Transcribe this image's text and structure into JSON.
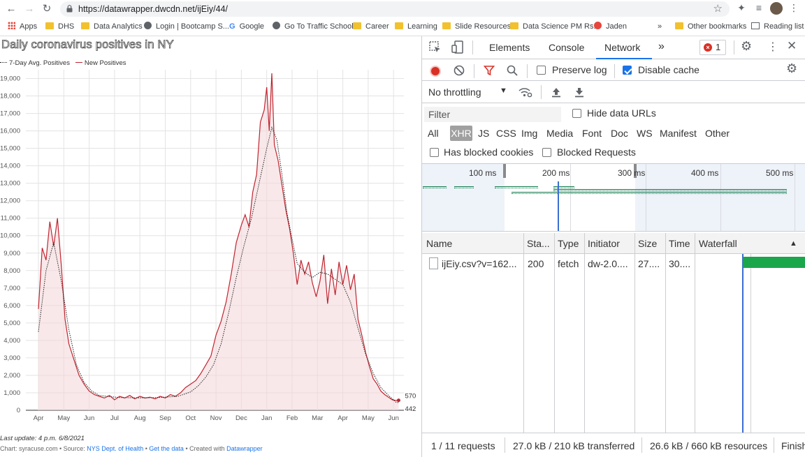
{
  "browser": {
    "url": "https://datawrapper.dwcdn.net/ijEiy/44/",
    "bookmarks": [
      {
        "label": "Apps",
        "icon": "apps-grid-icon"
      },
      {
        "label": "DHS",
        "icon": "folder-icon"
      },
      {
        "label": "Data Analytics",
        "icon": "folder-icon"
      },
      {
        "label": "Login | Bootcamp S...",
        "icon": "globe-icon"
      },
      {
        "label": "Google",
        "icon": "google-icon"
      },
      {
        "label": "Go To Traffic School",
        "icon": "globe-icon"
      },
      {
        "label": "Career",
        "icon": "folder-icon"
      },
      {
        "label": "Learning",
        "icon": "folder-icon"
      },
      {
        "label": "Slide Resources",
        "icon": "folder-icon"
      },
      {
        "label": "Data Science PM Rs...",
        "icon": "folder-icon"
      },
      {
        "label": "Jaden",
        "icon": "target-icon"
      }
    ],
    "overflow": "»",
    "other_bookmarks": "Other bookmarks",
    "reading_list": "Reading list"
  },
  "chart": {
    "title": "Daily coronavirus positives in NY",
    "legend": [
      {
        "label": "7-Day Avg. Positives",
        "color": "#222222"
      },
      {
        "label": "New Positives",
        "color": "#c0242f"
      }
    ],
    "footer_update": "Last update: 4 p.m. 6/8/2021",
    "footer_prefix": "Chart: syracuse.com • Source: ",
    "footer_source": "NYS Dept. of Health",
    "footer_sep1": " • ",
    "footer_getdata": "Get the data",
    "footer_sep2": " • Created with ",
    "footer_dw": "Datawrapper"
  },
  "chart_data": {
    "type": "line",
    "title": "Daily coronavirus positives in NY",
    "y_ticks": [
      "0",
      "1,000",
      "2,000",
      "3,000",
      "4,000",
      "5,000",
      "6,000",
      "7,000",
      "8,000",
      "9,000",
      "10,000",
      "11,000",
      "12,000",
      "13,000",
      "14,000",
      "15,000",
      "16,000",
      "17,000",
      "18,000",
      "19,000"
    ],
    "ylim": [
      0,
      19500
    ],
    "x_ticks": [
      "Apr",
      "May",
      "Jun",
      "Jul",
      "Aug",
      "Sep",
      "Oct",
      "Nov",
      "Dec",
      "Jan",
      "Feb",
      "Mar",
      "Apr",
      "May",
      "Jun"
    ],
    "series": [
      {
        "name": "New Positives",
        "color": "#c0242f",
        "x": [
          0,
          0.15,
          0.3,
          0.45,
          0.6,
          0.75,
          0.9,
          1.05,
          1.2,
          1.4,
          1.6,
          1.8,
          2.0,
          2.2,
          2.4,
          2.6,
          2.8,
          3.0,
          3.2,
          3.4,
          3.6,
          3.8,
          4.0,
          4.2,
          4.4,
          4.6,
          4.8,
          5.0,
          5.2,
          5.4,
          5.6,
          5.8,
          6.0,
          6.2,
          6.4,
          6.6,
          6.8,
          7.0,
          7.2,
          7.4,
          7.6,
          7.8,
          8.0,
          8.15,
          8.3,
          8.45,
          8.6,
          8.75,
          8.9,
          9.0,
          9.1,
          9.2,
          9.3,
          9.45,
          9.6,
          9.75,
          9.9,
          10.05,
          10.2,
          10.35,
          10.5,
          10.65,
          10.8,
          10.95,
          11.1,
          11.25,
          11.4,
          11.55,
          11.7,
          11.85,
          12.0,
          12.15,
          12.3,
          12.45,
          12.6,
          12.75,
          12.9,
          13.05,
          13.2,
          13.35,
          13.5,
          13.65,
          13.8,
          13.95,
          14.1,
          14.2
        ],
        "y": [
          5800,
          9300,
          8600,
          10800,
          9400,
          11000,
          8300,
          5200,
          3800,
          2900,
          2000,
          1500,
          1100,
          900,
          800,
          700,
          850,
          600,
          800,
          700,
          850,
          650,
          800,
          700,
          750,
          650,
          800,
          700,
          900,
          800,
          1000,
          1300,
          1500,
          1700,
          2100,
          2600,
          3100,
          4300,
          5100,
          6200,
          7800,
          9600,
          10600,
          11200,
          10500,
          12500,
          13500,
          16500,
          17200,
          18500,
          16000,
          19300,
          15200,
          14300,
          12900,
          11500,
          10400,
          9000,
          7200,
          8600,
          7800,
          8500,
          7300,
          6500,
          7400,
          8900,
          6100,
          8100,
          6600,
          8500,
          7200,
          8300,
          6900,
          7800,
          5200,
          4300,
          3300,
          2500,
          1800,
          1500,
          1100,
          900,
          750,
          600,
          560,
          570
        ]
      },
      {
        "name": "7-Day Avg. Positives",
        "color": "#222222",
        "x": [
          0,
          0.3,
          0.6,
          0.9,
          1.2,
          1.5,
          1.8,
          2.1,
          2.4,
          2.8,
          3.2,
          3.6,
          4.0,
          4.5,
          5.0,
          5.5,
          6.0,
          6.3,
          6.6,
          6.9,
          7.2,
          7.5,
          7.8,
          8.1,
          8.4,
          8.7,
          9.0,
          9.2,
          9.4,
          9.6,
          9.8,
          10.0,
          10.2,
          10.5,
          10.8,
          11.1,
          11.4,
          11.7,
          12.0,
          12.3,
          12.6,
          12.9,
          13.2,
          13.5,
          13.8,
          14.1,
          14.2
        ],
        "y": [
          4500,
          8000,
          9600,
          7400,
          4600,
          2600,
          1600,
          1100,
          850,
          780,
          730,
          720,
          710,
          720,
          750,
          800,
          1050,
          1400,
          1900,
          2600,
          3800,
          5600,
          7600,
          9400,
          11000,
          13000,
          15000,
          16200,
          15500,
          13500,
          11300,
          9800,
          8400,
          7900,
          7600,
          7900,
          7800,
          7500,
          7200,
          6200,
          4700,
          3200,
          2100,
          1300,
          850,
          460,
          442
        ]
      }
    ],
    "end_labels": [
      "570",
      "442"
    ]
  },
  "devtools": {
    "tabs": [
      "Elements",
      "Console",
      "Network"
    ],
    "active_tab": "Network",
    "more": "»",
    "error_count": "1",
    "preserve_log": "Preserve log",
    "disable_cache": "Disable cache",
    "throttling": "No throttling",
    "filter_placeholder": "Filter",
    "hide_data_urls": "Hide data URLs",
    "filter_types": [
      "All",
      "XHR",
      "JS",
      "CSS",
      "Img",
      "Media",
      "Font",
      "Doc",
      "WS",
      "Manifest",
      "Other"
    ],
    "active_filter": "XHR",
    "has_blocked_cookies": "Has blocked cookies",
    "blocked_requests": "Blocked Requests",
    "timeline_labels": [
      "100 ms",
      "200 ms",
      "300 ms",
      "400 ms",
      "500 ms"
    ],
    "columns": [
      "Name",
      "Sta...",
      "Type",
      "Initiator",
      "Size",
      "Time",
      "Waterfall"
    ],
    "rows": [
      {
        "name": "ijEiy.csv?v=162...",
        "status": "200",
        "type": "fetch",
        "initiator": "dw-2.0....",
        "size": "27....",
        "time": "30...."
      }
    ],
    "status": {
      "requests": "1 / 11 requests",
      "transferred": "27.0 kB / 210 kB transferred",
      "resources": "26.6 kB / 660 kB resources",
      "finish": "Finish"
    }
  }
}
